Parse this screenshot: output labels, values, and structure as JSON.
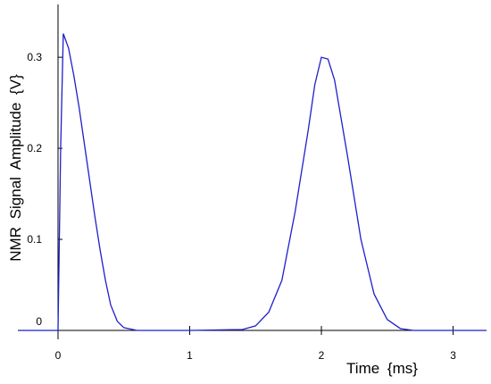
{
  "chart_data": {
    "type": "line",
    "x_label": "Time {ms}",
    "y_label": "NMR Signal Amplitude {V}",
    "x": [
      -0.3,
      0,
      0.02,
      0.04,
      0.08,
      0.12,
      0.16,
      0.2,
      0.24,
      0.28,
      0.32,
      0.36,
      0.4,
      0.45,
      0.5,
      0.6,
      1.0,
      1.4,
      1.5,
      1.6,
      1.7,
      1.8,
      1.9,
      1.95,
      2.0,
      2.05,
      2.1,
      2.2,
      2.3,
      2.4,
      2.5,
      2.6,
      2.7,
      3.25
    ],
    "series": [
      {
        "color": "#1f1fcc",
        "values": [
          0,
          0,
          0.2,
          0.326,
          0.31,
          0.28,
          0.245,
          0.205,
          0.165,
          0.125,
          0.088,
          0.055,
          0.028,
          0.01,
          0.003,
          0,
          0,
          0.001,
          0.005,
          0.02,
          0.055,
          0.13,
          0.22,
          0.27,
          0.3,
          0.298,
          0.275,
          0.19,
          0.1,
          0.04,
          0.012,
          0.002,
          0,
          0
        ]
      }
    ],
    "xlim": [
      -0.305,
      3.254
    ],
    "ylim": [
      0,
      0.358
    ],
    "xticks": [
      0,
      1,
      2,
      3
    ],
    "yticks": [
      0,
      0.1,
      0.2,
      0.3
    ]
  }
}
